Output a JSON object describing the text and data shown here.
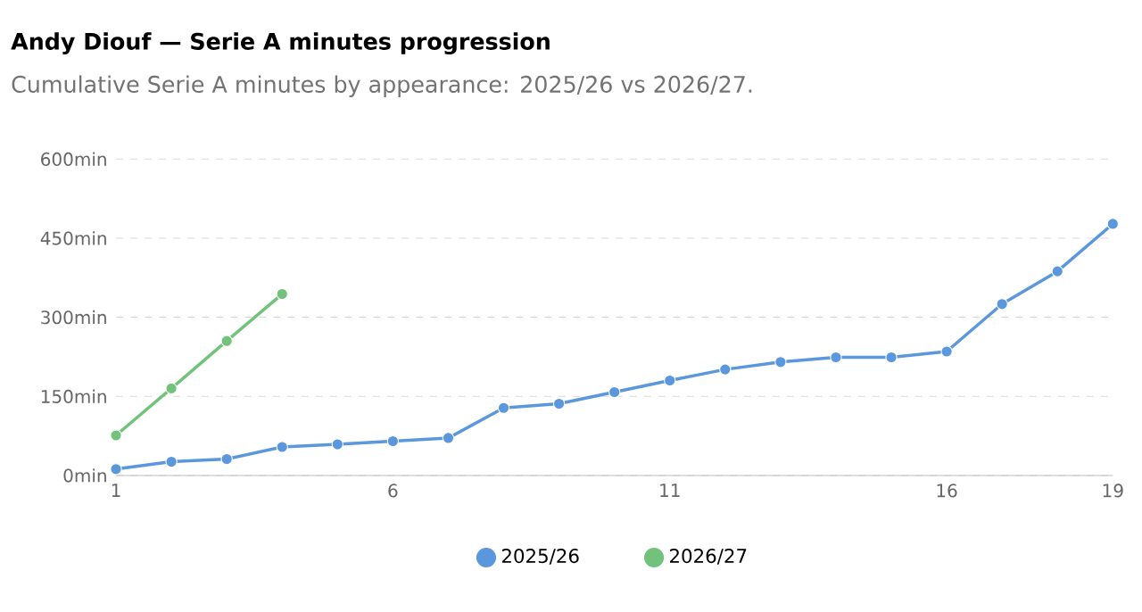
{
  "chart_data": {
    "type": "line",
    "title": "Andy Diouf — Serie A minutes progression",
    "subtitle": "Cumulative Serie A minutes by appearance: 2025/26 vs 2026/27.",
    "series": [
      {
        "name": "2025/26",
        "color": "#5b97dc",
        "x": [
          1,
          2,
          3,
          4,
          5,
          6,
          7,
          8,
          9,
          10,
          11,
          12,
          13,
          14,
          15,
          16,
          17,
          18,
          19
        ],
        "values": [
          12,
          26,
          31,
          54,
          59,
          65,
          71,
          128,
          136,
          158,
          180,
          201,
          215,
          224,
          224,
          235,
          325,
          387,
          477
        ]
      },
      {
        "name": "2026/27",
        "color": "#72c27b",
        "x": [
          1,
          2,
          3,
          4
        ],
        "values": [
          76,
          165,
          255,
          344
        ]
      }
    ],
    "xlim": [
      1,
      19
    ],
    "xticks": [
      1,
      6,
      11,
      16,
      19
    ],
    "ylim": [
      0,
      600
    ],
    "yticks": [
      {
        "value": 0,
        "label": "0min"
      },
      {
        "value": 150,
        "label": "150min"
      },
      {
        "value": 300,
        "label": "300min"
      },
      {
        "value": 450,
        "label": "450min"
      },
      {
        "value": 600,
        "label": "600min"
      }
    ],
    "grid": "y",
    "legend": "bottom",
    "marker": "circle",
    "line_style": "solid"
  }
}
